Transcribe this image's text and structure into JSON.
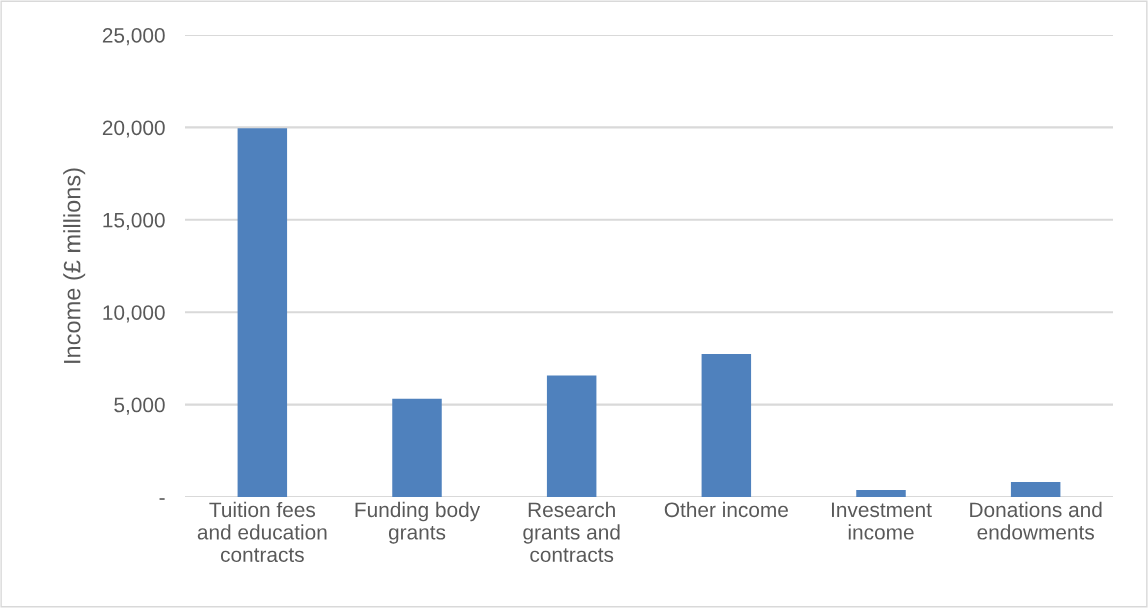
{
  "chart_data": {
    "type": "bar",
    "ylabel": "Income (£ millions)",
    "categories": [
      "Tuition fees\nand education\ncontracts",
      "Funding body\ngrants",
      "Research\ngrants and\ncontracts",
      "Other income",
      "Investment\nincome",
      "Donations and\nendowments"
    ],
    "values": [
      19950,
      5310,
      6580,
      7740,
      380,
      810
    ],
    "color": "#4f81bd",
    "ylim": [
      0,
      25000
    ],
    "yticks": [
      {
        "value": 0,
        "label": "-"
      },
      {
        "value": 5000,
        "label": "5,000"
      },
      {
        "value": 10000,
        "label": "10,000"
      },
      {
        "value": 15000,
        "label": "15,000"
      },
      {
        "value": 20000,
        "label": "20,000"
      },
      {
        "value": 25000,
        "label": "25,000"
      }
    ],
    "grid": "y",
    "legend": false
  }
}
